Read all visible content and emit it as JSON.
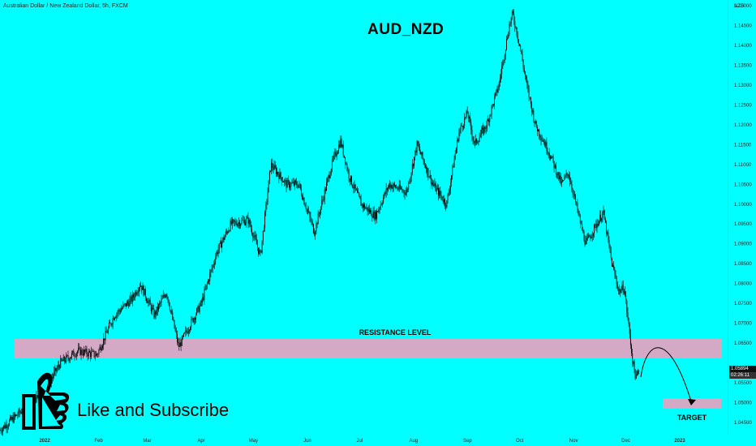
{
  "header": {
    "symbol": "Australian Dollar / New Zealand Dollar, 5h, FXCM"
  },
  "title": "AUD_NZD",
  "call_to_action": "Like and Subscribe",
  "price_tag": {
    "price": "1.05894",
    "countdown": "02:26:11"
  },
  "colors": {
    "background": "#00FFFF",
    "zone": "#D4A9C6",
    "candles": "#000000"
  },
  "icon": "thumbs-up-icon",
  "chart_data": {
    "type": "candlestick",
    "currency_label": "NZD",
    "y_ticks": [
      "1.15000",
      "1.14500",
      "1.14000",
      "1.13500",
      "1.13000",
      "1.12500",
      "1.12000",
      "1.11500",
      "1.11000",
      "1.10500",
      "1.10000",
      "1.09500",
      "1.09000",
      "1.08500",
      "1.08000",
      "1.07500",
      "1.07000",
      "1.06500",
      "1.05500",
      "1.05000",
      "1.04500"
    ],
    "x_ticks": [
      "2022",
      "Feb",
      "Mar",
      "Apr",
      "May",
      "Jun",
      "Jul",
      "Aug",
      "Sep",
      "Oct",
      "Nov",
      "Dec",
      "2023"
    ],
    "ylim": [
      1.0425,
      1.151
    ],
    "close_path": [
      {
        "x": "2022-01-01",
        "y": 1.053
      },
      {
        "x": "2022-01-10",
        "y": 1.06
      },
      {
        "x": "2022-01-20",
        "y": 1.063
      },
      {
        "x": "2022-01-31",
        "y": 1.062
      },
      {
        "x": "2022-02-10",
        "y": 1.072
      },
      {
        "x": "2022-02-20",
        "y": 1.076
      },
      {
        "x": "2022-02-25",
        "y": 1.08
      },
      {
        "x": "2022-03-05",
        "y": 1.072
      },
      {
        "x": "2022-03-12",
        "y": 1.078
      },
      {
        "x": "2022-03-19",
        "y": 1.064
      },
      {
        "x": "2022-03-26",
        "y": 1.07
      },
      {
        "x": "2022-04-01",
        "y": 1.075
      },
      {
        "x": "2022-04-10",
        "y": 1.088
      },
      {
        "x": "2022-04-18",
        "y": 1.095
      },
      {
        "x": "2022-04-28",
        "y": 1.096
      },
      {
        "x": "2022-05-05",
        "y": 1.087
      },
      {
        "x": "2022-05-11",
        "y": 1.11
      },
      {
        "x": "2022-05-20",
        "y": 1.105
      },
      {
        "x": "2022-05-27",
        "y": 1.105
      },
      {
        "x": "2022-06-05",
        "y": 1.093
      },
      {
        "x": "2022-06-15",
        "y": 1.11
      },
      {
        "x": "2022-06-20",
        "y": 1.116
      },
      {
        "x": "2022-06-25",
        "y": 1.107
      },
      {
        "x": "2022-07-02",
        "y": 1.1
      },
      {
        "x": "2022-07-10",
        "y": 1.097
      },
      {
        "x": "2022-07-18",
        "y": 1.105
      },
      {
        "x": "2022-07-28",
        "y": 1.103
      },
      {
        "x": "2022-08-03",
        "y": 1.115
      },
      {
        "x": "2022-08-12",
        "y": 1.105
      },
      {
        "x": "2022-08-20",
        "y": 1.1
      },
      {
        "x": "2022-08-27",
        "y": 1.118
      },
      {
        "x": "2022-09-01",
        "y": 1.123
      },
      {
        "x": "2022-09-05",
        "y": 1.115
      },
      {
        "x": "2022-09-12",
        "y": 1.12
      },
      {
        "x": "2022-09-19",
        "y": 1.13
      },
      {
        "x": "2022-09-25",
        "y": 1.145
      },
      {
        "x": "2022-09-27",
        "y": 1.148
      },
      {
        "x": "2022-10-01",
        "y": 1.14
      },
      {
        "x": "2022-10-05",
        "y": 1.13
      },
      {
        "x": "2022-10-10",
        "y": 1.12
      },
      {
        "x": "2022-10-18",
        "y": 1.113
      },
      {
        "x": "2022-10-25",
        "y": 1.105
      },
      {
        "x": "2022-10-29",
        "y": 1.108
      },
      {
        "x": "2022-11-05",
        "y": 1.095
      },
      {
        "x": "2022-11-08",
        "y": 1.09
      },
      {
        "x": "2022-11-18",
        "y": 1.098
      },
      {
        "x": "2022-11-23",
        "y": 1.085
      },
      {
        "x": "2022-11-27",
        "y": 1.078
      },
      {
        "x": "2022-11-30",
        "y": 1.079
      },
      {
        "x": "2022-12-03",
        "y": 1.068
      },
      {
        "x": "2022-12-05",
        "y": 1.06
      },
      {
        "x": "2022-12-07",
        "y": 1.056
      },
      {
        "x": "2022-12-09",
        "y": 1.0589
      }
    ],
    "annotations": [
      {
        "text": "RESISTANCE LEVEL",
        "zone": [
          1.0615,
          1.0665
        ],
        "x_start": "2022-01-01",
        "x_end": "2022-12-31"
      },
      {
        "text": "TARGET",
        "zone": [
          1.0488,
          1.0515
        ],
        "x_start": "2022-12-20",
        "x_end": "2022-12-31"
      }
    ]
  }
}
